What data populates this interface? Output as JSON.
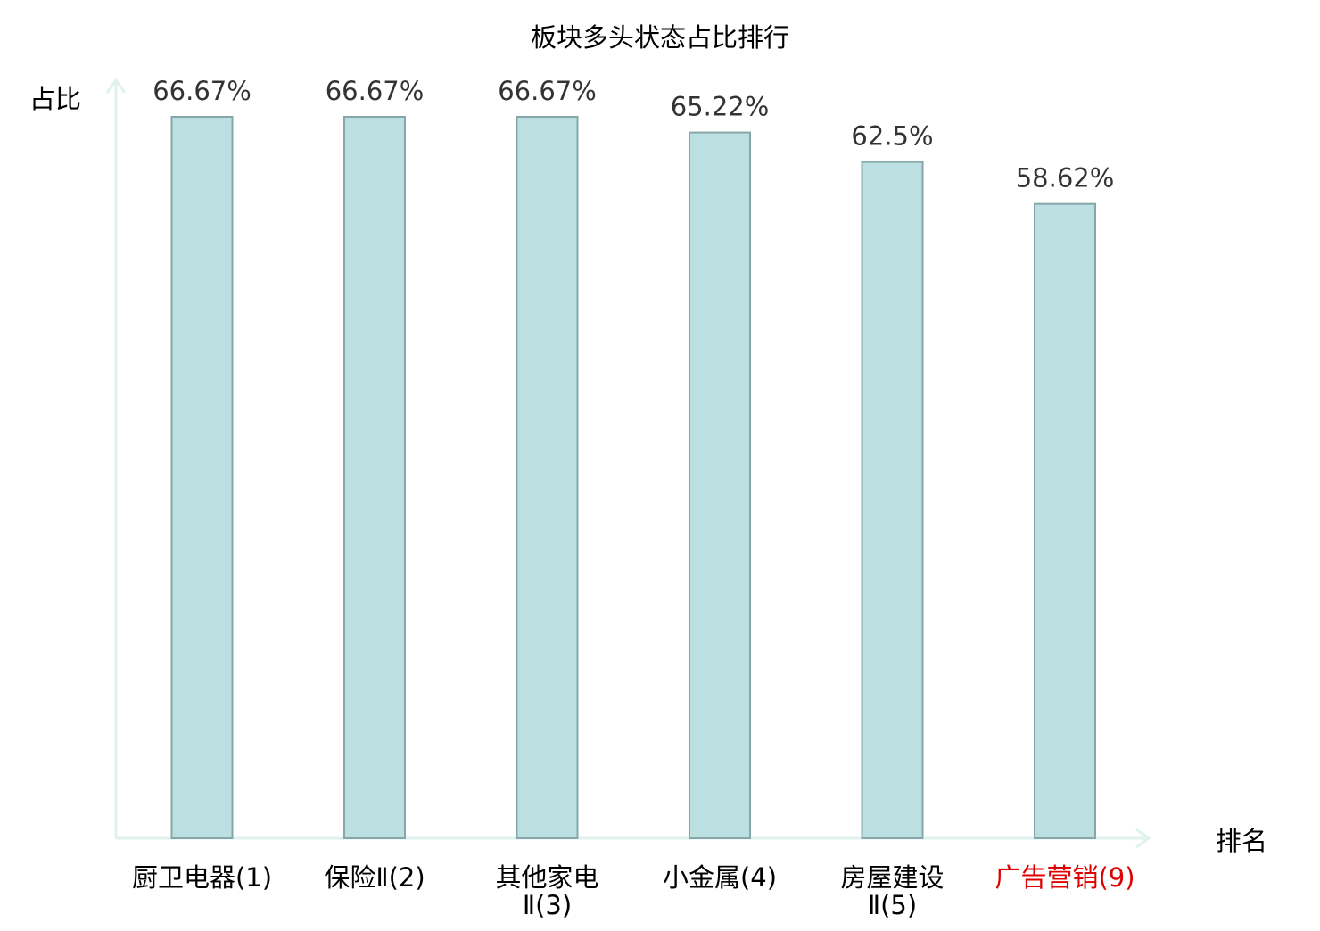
{
  "chart_data": {
    "type": "bar",
    "title": "板块多头状态占比排行",
    "ylabel": "占比",
    "xlabel": "排名",
    "categories": [
      [
        "厨卫电器(1)"
      ],
      [
        "保险Ⅱ(2)"
      ],
      [
        "其他家电",
        "Ⅱ(3)"
      ],
      [
        "小金属(4)"
      ],
      [
        "房屋建设",
        "Ⅱ(5)"
      ],
      [
        "广告营销(9)"
      ]
    ],
    "values": [
      66.67,
      66.67,
      66.67,
      65.22,
      62.5,
      58.62
    ],
    "value_labels": [
      "66.67%",
      "66.67%",
      "66.67%",
      "65.22%",
      "62.5%",
      "58.62%"
    ],
    "highlight_index": 5,
    "ylim": [
      0,
      66.67
    ],
    "colors": {
      "bar_fill": "#bce0e2",
      "bar_stroke": "#86a7a9",
      "axis": "#dff2ee",
      "text": "#333333",
      "label": "#000000",
      "highlight": "#e00000"
    }
  }
}
